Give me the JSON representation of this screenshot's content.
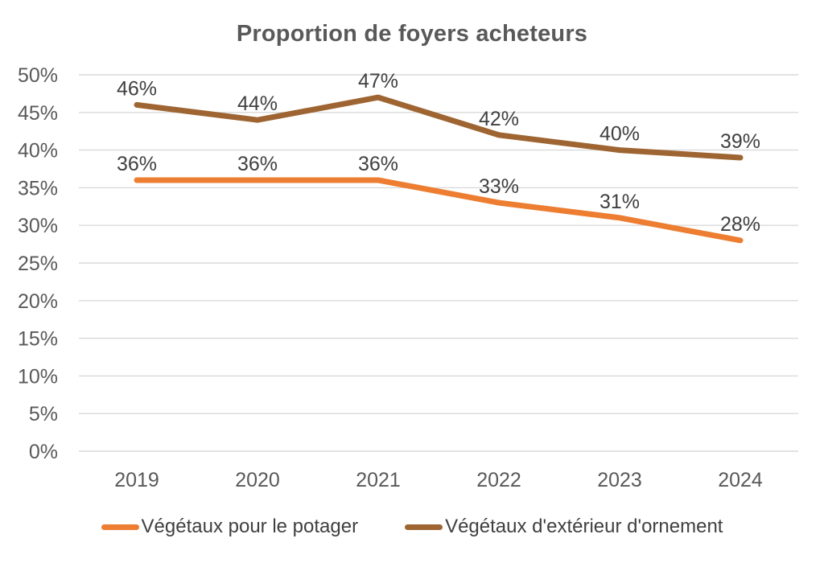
{
  "chart_data": {
    "type": "line",
    "title": "Proportion de foyers acheteurs",
    "categories": [
      "2019",
      "2020",
      "2021",
      "2022",
      "2023",
      "2024"
    ],
    "series": [
      {
        "name": "Végétaux pour le potager",
        "values": [
          36,
          36,
          36,
          33,
          31,
          28
        ],
        "color": "#ED7D31"
      },
      {
        "name": "Végétaux d'extérieur d'ornement",
        "values": [
          46,
          44,
          47,
          42,
          40,
          39
        ],
        "color": "#9E6532"
      }
    ],
    "data_labels_visible": true,
    "data_label_suffix": "%",
    "xlabel": "",
    "ylabel": "",
    "y_axis": {
      "min": 0,
      "max": 50,
      "step": 5,
      "tick_suffix": "%"
    },
    "grid": true,
    "legend_position": "bottom",
    "colors": {
      "grid": "#D9D9D9",
      "title": "#595959",
      "axis_labels": "#595959",
      "data_labels": "#404040",
      "legend_labels": "#404040",
      "background": "#FFFFFF"
    }
  }
}
